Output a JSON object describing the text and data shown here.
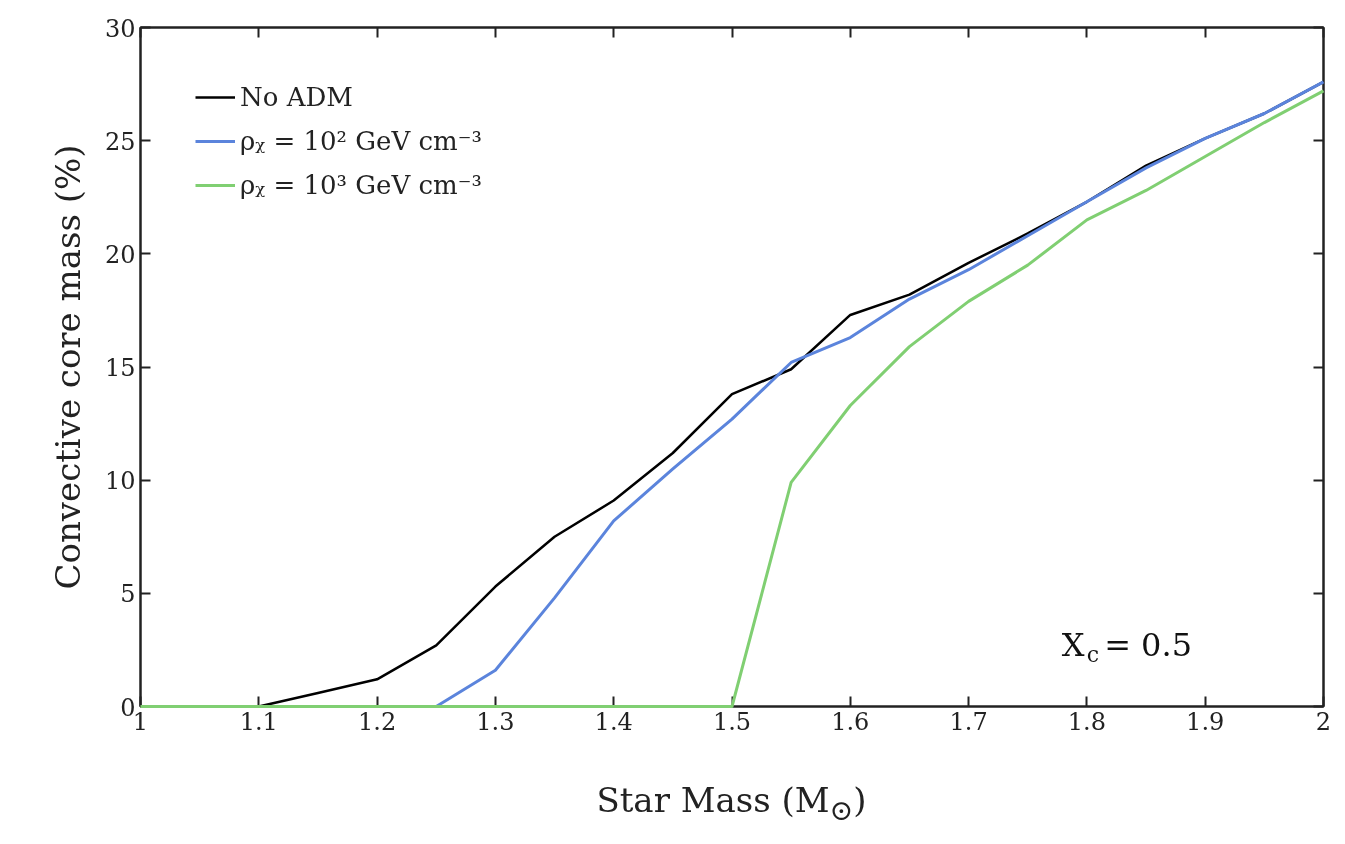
{
  "chart_data": {
    "type": "line",
    "xlabel": "Star Mass (M$_{⊙}$)",
    "ylabel": "Convective core mass (%)",
    "x": [
      1.0,
      1.05,
      1.1,
      1.15,
      1.2,
      1.25,
      1.3,
      1.35,
      1.4,
      1.45,
      1.5,
      1.55,
      1.6,
      1.65,
      1.7,
      1.75,
      1.8,
      1.85,
      1.9,
      1.95,
      2.0
    ],
    "series": [
      {
        "name": "No ADM",
        "color": "#000000",
        "values": [
          null,
          null,
          0,
          0.6,
          1.2,
          2.7,
          5.3,
          7.5,
          9.1,
          11.2,
          13.8,
          14.9,
          17.3,
          18.2,
          19.6,
          20.9,
          22.3,
          23.9,
          25.1,
          26.2,
          27.6
        ]
      },
      {
        "name": "ρᵪ = 10² GeV cm⁻³",
        "color": "#5b84dc",
        "values": [
          null,
          null,
          null,
          null,
          null,
          0,
          1.6,
          4.8,
          8.2,
          10.5,
          12.7,
          15.2,
          16.3,
          18.0,
          19.3,
          20.8,
          22.3,
          23.8,
          25.1,
          26.2,
          27.6
        ]
      },
      {
        "name": "ρᵪ = 10³ GeV cm⁻³",
        "color": "#80cf72",
        "values": [
          0,
          0,
          0,
          0,
          0,
          0,
          0,
          0,
          0,
          0,
          0,
          9.9,
          13.3,
          15.9,
          17.9,
          19.5,
          21.5,
          22.8,
          24.3,
          25.8,
          27.2
        ]
      }
    ],
    "xlim": [
      1,
      2
    ],
    "ylim": [
      0,
      30
    ],
    "xticks": [
      1,
      1.1,
      1.2,
      1.3,
      1.4,
      1.5,
      1.6,
      1.7,
      1.8,
      1.9,
      2
    ],
    "yticks": [
      0,
      5,
      10,
      15,
      20,
      25,
      30
    ],
    "annotations": [
      "X$_{c}$ = 0.5"
    ],
    "grid": false,
    "legend": "top left",
    "marker": "none",
    "line_style": "solid"
  }
}
